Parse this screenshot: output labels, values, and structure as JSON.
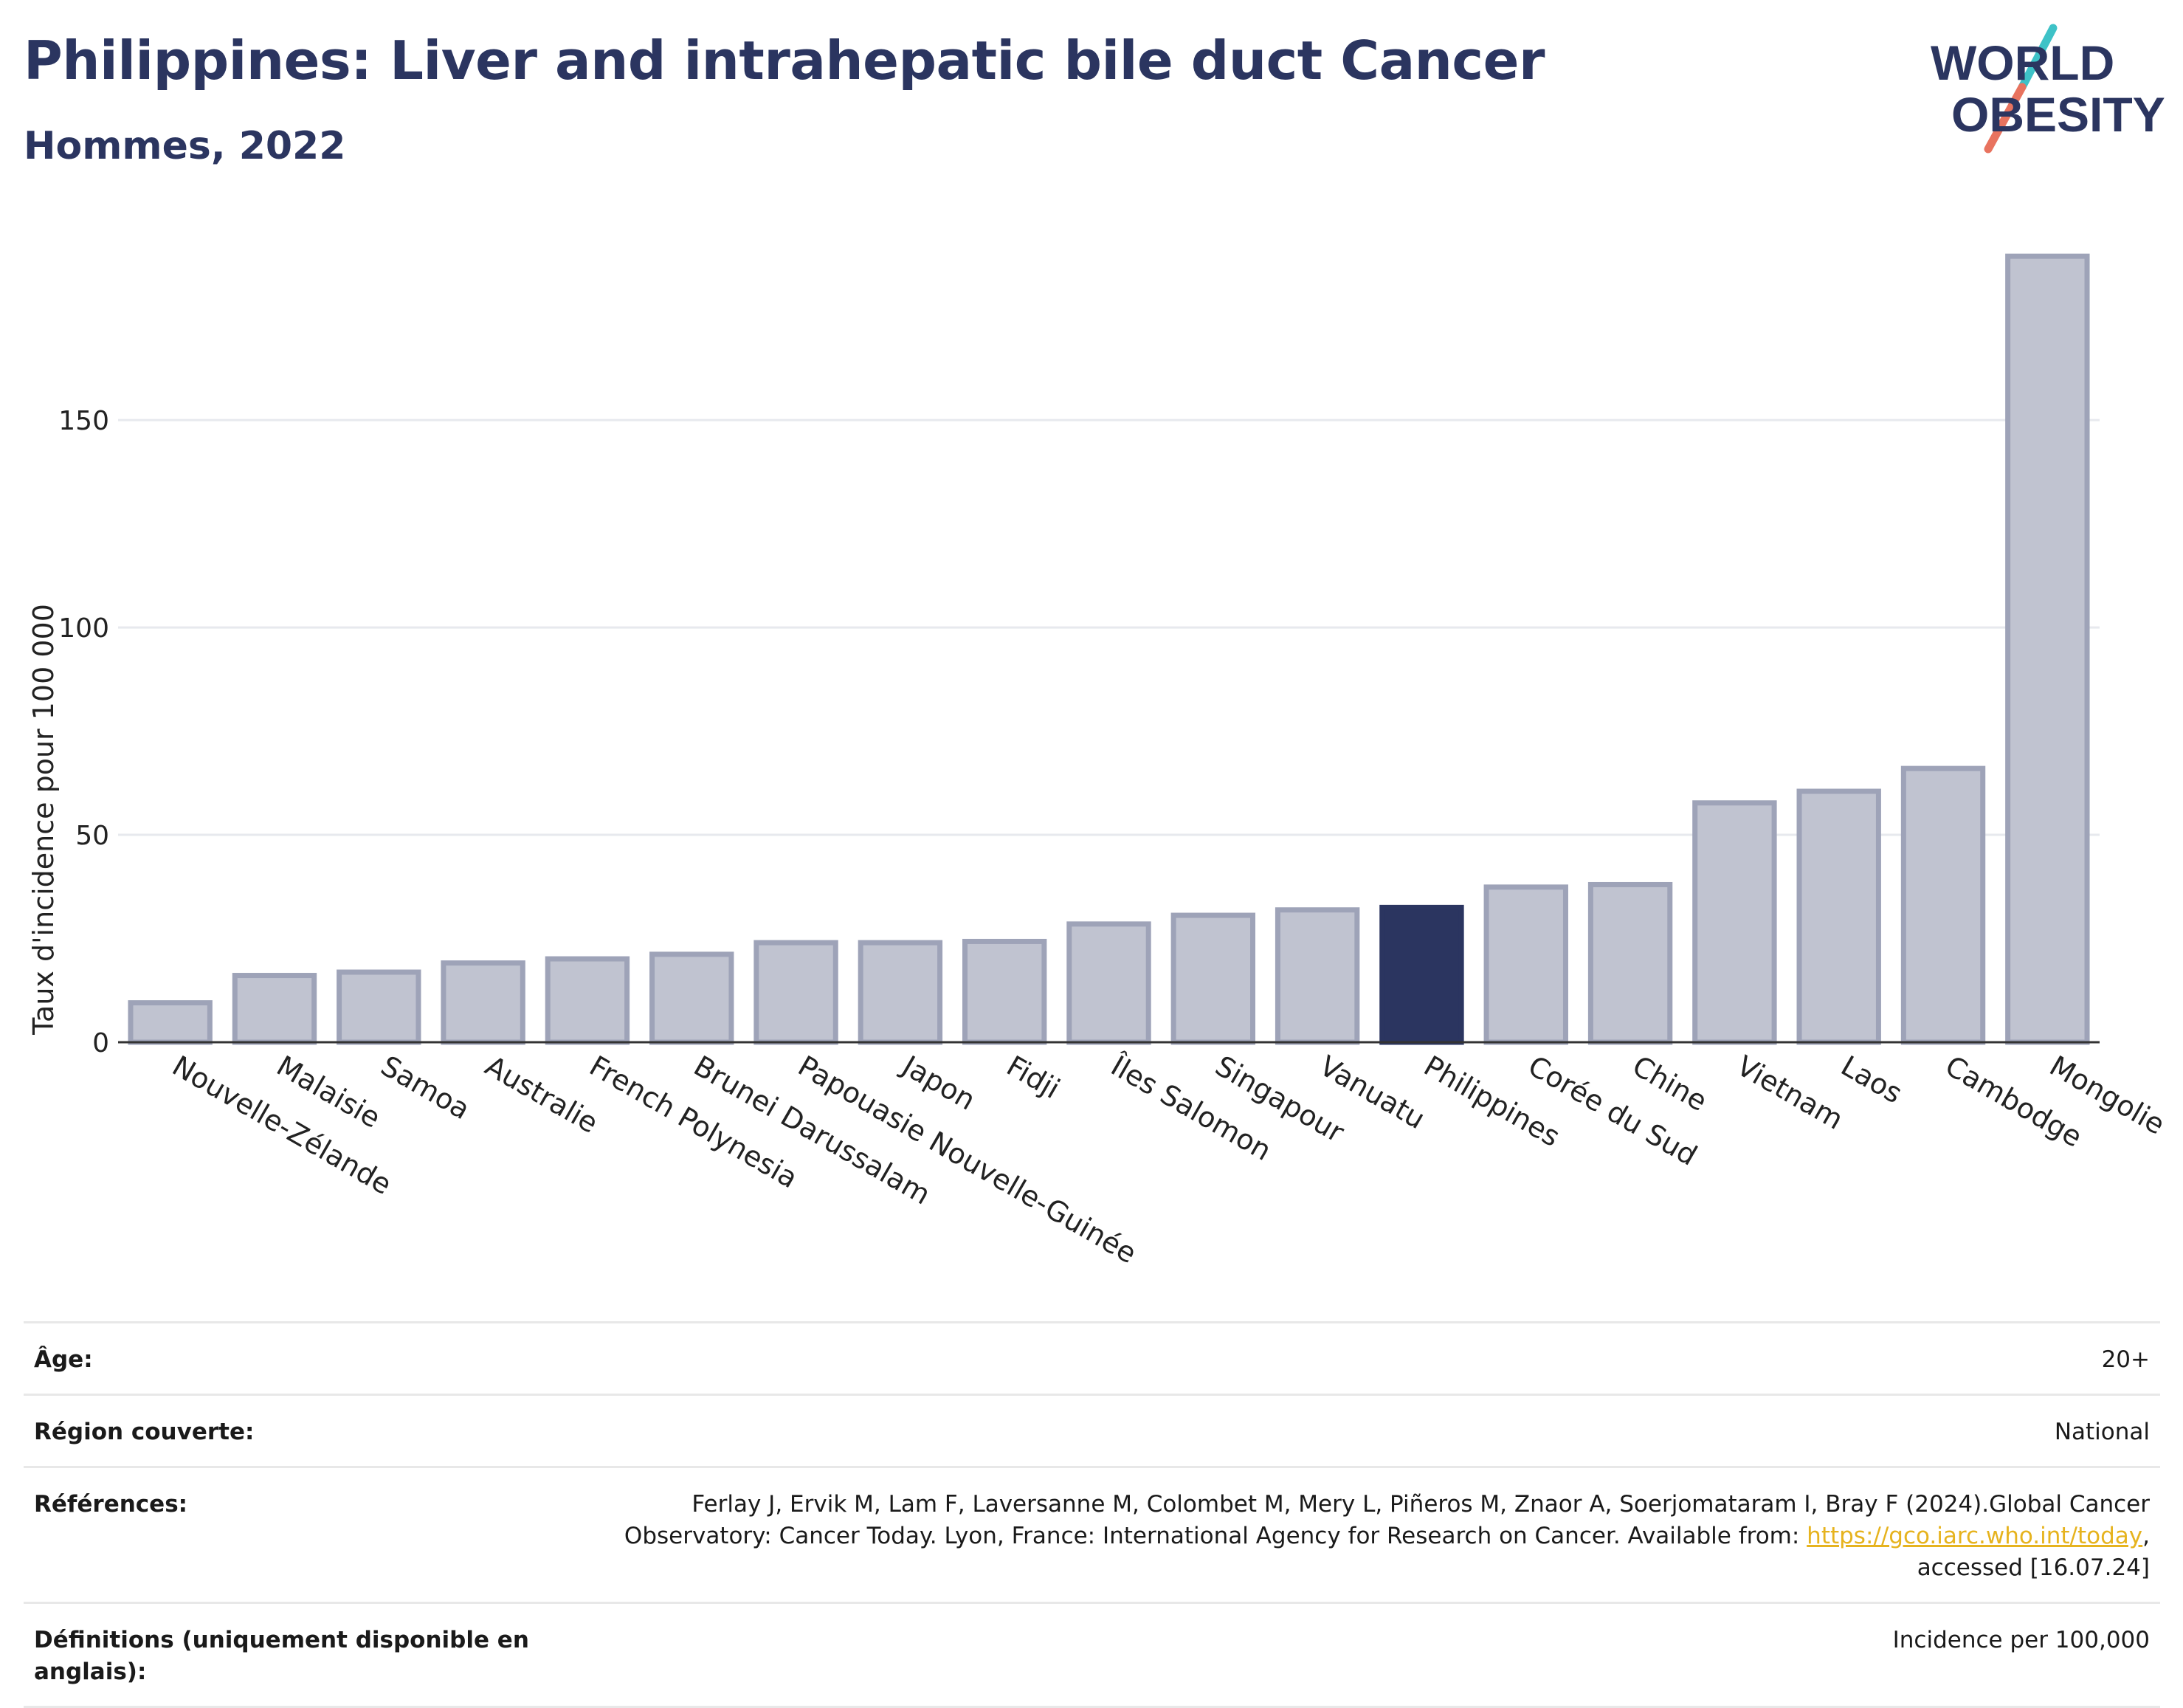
{
  "header": {
    "title": "Philippines: Liver and intrahepatic bile duct Cancer",
    "subtitle": "Hommes, 2022"
  },
  "logo": {
    "line1": "WORLD",
    "line2": "OBESITY",
    "colors": {
      "text": "#2b3560",
      "stroke_teal": "#3ec2c7",
      "stroke_coral": "#e8735f"
    }
  },
  "chart_data": {
    "type": "bar",
    "title": "Philippines: Liver and intrahepatic bile duct Cancer",
    "subtitle": "Hommes, 2022",
    "ylabel": "Taux d'incidence pour 100 000",
    "xlabel": "",
    "ylim": [
      0,
      197
    ],
    "yticks": [
      0,
      50,
      100,
      150
    ],
    "grid": true,
    "categories": [
      "Nouvelle-Zélande",
      "Malaisie",
      "Samoa",
      "Australie",
      "French Polynesia",
      "Brunei Darussalam",
      "Papouasie Nouvelle-Guinée",
      "Japon",
      "Fidji",
      "Îles Salomon",
      "Singapour",
      "Vanuatu",
      "Philippines",
      "Corée du Sud",
      "Chine",
      "Vietnam",
      "Laos",
      "Cambodge",
      "Mongolie"
    ],
    "values": [
      9.5,
      16.1,
      16.9,
      19.1,
      20.1,
      21.2,
      24.0,
      24.0,
      24.3,
      28.5,
      30.6,
      31.9,
      32.5,
      37.4,
      38.0,
      57.7,
      60.5,
      66.0,
      189.5
    ],
    "highlight": "Philippines",
    "colors": {
      "bar": "#c0c3d0",
      "bar_border": "#9ea3b8",
      "highlight": "#2b3560"
    }
  },
  "meta": {
    "age": {
      "label": "Âge:",
      "value": "20+"
    },
    "region": {
      "label": "Région couverte:",
      "value": "National"
    },
    "references": {
      "label": "Références:",
      "text": "Ferlay J, Ervik M, Lam F, Laversanne M, Colombet M, Mery L, Piñeros M, Znaor A, Soerjomataram I, Bray F (2024).Global Cancer Observatory: Cancer Today. Lyon, France: International Agency for Research on Cancer. Available from: ",
      "link": "https://gco.iarc.who.int/today",
      "suffix": ", accessed [16.07.24]"
    },
    "definitions": {
      "label": "Définitions (uniquement disponible en anglais):",
      "value": "Incidence per 100,000"
    }
  }
}
